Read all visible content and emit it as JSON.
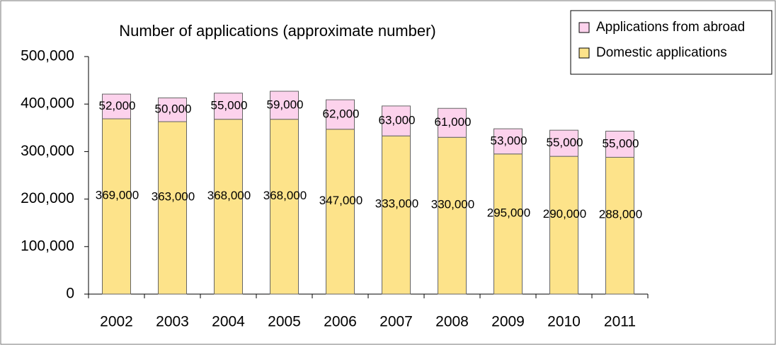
{
  "chart_data": {
    "type": "stacked_bar",
    "title": "Number of applications (approximate number)",
    "categories": [
      "2002",
      "2003",
      "2004",
      "2005",
      "2006",
      "2007",
      "2008",
      "2009",
      "2010",
      "2011"
    ],
    "series": [
      {
        "name": "Domestic applications",
        "color": "#fde38a",
        "values": [
          369000,
          363000,
          368000,
          368000,
          347000,
          333000,
          330000,
          295000,
          290000,
          288000
        ],
        "value_labels": [
          "369,000",
          "363,000",
          "368,000",
          "368,000",
          "347,000",
          "333,000",
          "330,000",
          "295,000",
          "290,000",
          "288,000"
        ]
      },
      {
        "name": "Applications from abroad",
        "color": "#fcd2ec",
        "values": [
          52000,
          50000,
          55000,
          59000,
          62000,
          63000,
          61000,
          53000,
          55000,
          55000
        ],
        "value_labels": [
          "52,000",
          "50,000",
          "55,000",
          "59,000",
          "62,000",
          "63,000",
          "61,000",
          "53,000",
          "55,000",
          "55,000"
        ]
      }
    ],
    "ylim": [
      0,
      500000
    ],
    "yticks": [
      0,
      {
        "value": 100000,
        "label": "100,000"
      },
      {
        "value": 200000,
        "label": "200,000"
      },
      {
        "value": 300000,
        "label": "300,000"
      },
      {
        "value": 400000,
        "label": "400,000"
      },
      {
        "value": 500000,
        "label": "500,000"
      }
    ],
    "legend": "upper right"
  }
}
